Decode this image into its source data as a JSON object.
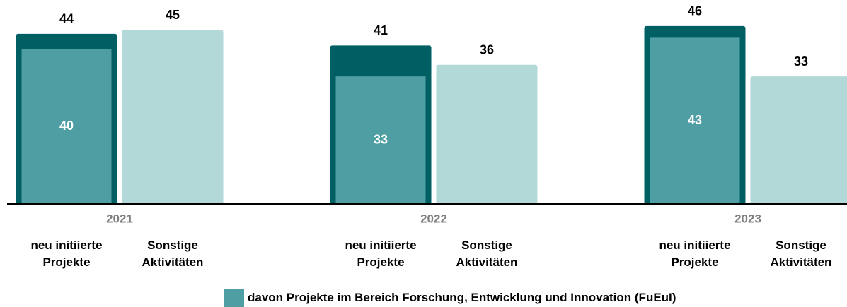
{
  "chart_data": {
    "type": "bar",
    "categories": [
      "2021",
      "2022",
      "2023"
    ],
    "series": [
      {
        "name": "neu initiierte Projekte",
        "color": "#005f63",
        "values": [
          44,
          41,
          46
        ]
      },
      {
        "name": "Sonstige Aktivitäten",
        "color": "#b2d8d8",
        "values": [
          45,
          36,
          33
        ]
      }
    ],
    "subset_series": {
      "name": "davon Projekte im Bereich Forschung, Entwicklung und Innovation (FuEuI)",
      "color": "#4f9ea3",
      "values": [
        40,
        33,
        43
      ],
      "of_series": 0
    },
    "ylim": [
      0,
      50
    ]
  }
}
